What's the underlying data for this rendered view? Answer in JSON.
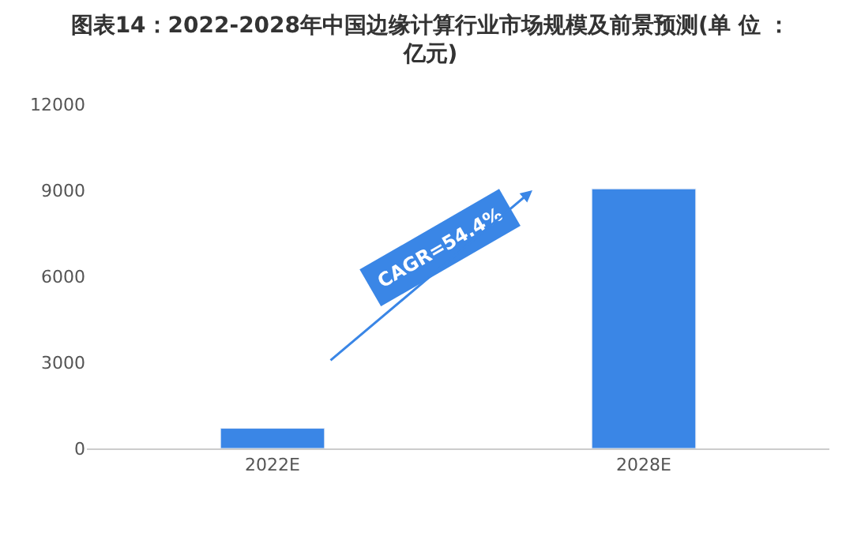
{
  "chart_data": {
    "type": "bar",
    "title": "图表14：2022-2028年中国边缘计算行业市场规模及前景预测(单 位 ：亿元)",
    "categories": [
      "2022E",
      "2028E"
    ],
    "values": [
      700,
      9050
    ],
    "color": "#3a86e6",
    "ylim": [
      0,
      12000
    ],
    "yticks": [
      0,
      3000,
      6000,
      9000,
      12000
    ],
    "grid": false,
    "annotations": [
      "CAGR=54.4%"
    ]
  }
}
